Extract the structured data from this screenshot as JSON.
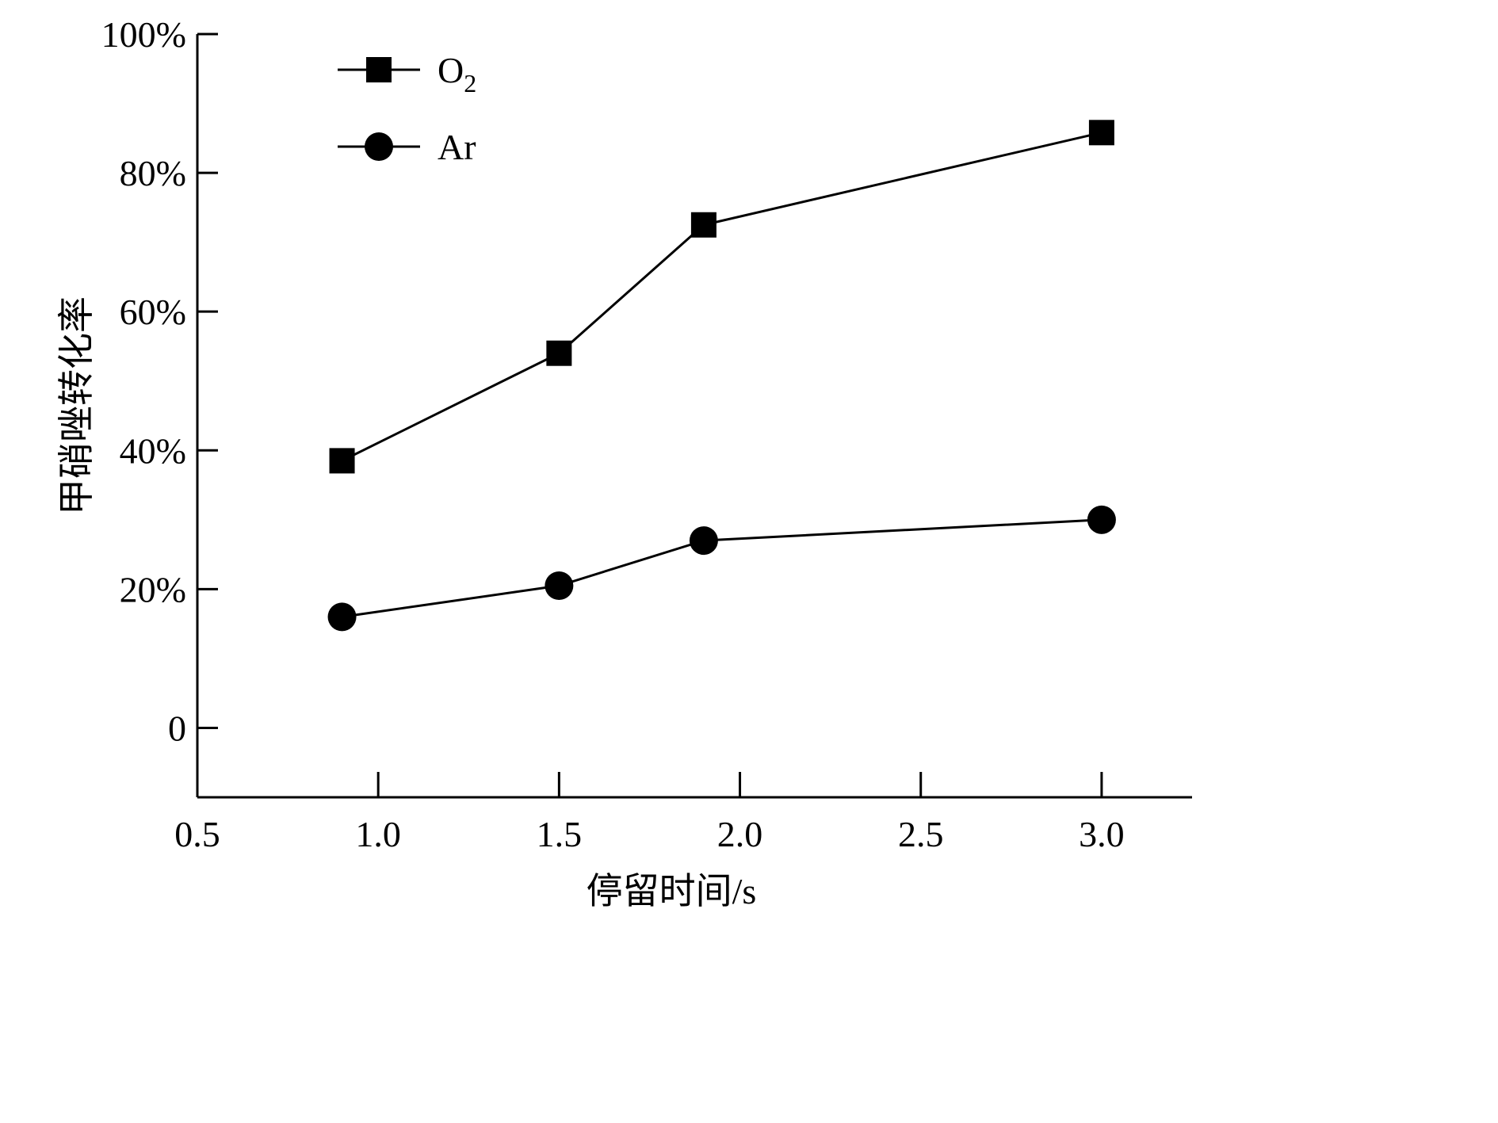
{
  "chart_data": {
    "type": "line",
    "xlabel": "停留时间/s",
    "ylabel": "甲硝唑转化率",
    "x_ticks": [
      "0.5",
      "1.0",
      "1.5",
      "2.0",
      "2.5",
      "3.0"
    ],
    "y_ticks": [
      "0",
      "20%",
      "40%",
      "60%",
      "80%",
      "100%"
    ],
    "xlim": [
      0.5,
      3.25
    ],
    "ylim": [
      -0.1,
      1.0
    ],
    "grid": false,
    "legend_position": "top-left",
    "series": [
      {
        "name": "O2",
        "legend_main": "O",
        "legend_sub": "2",
        "marker": "square",
        "x": [
          0.9,
          1.5,
          1.9,
          3.0
        ],
        "y": [
          0.385,
          0.54,
          0.725,
          0.858
        ]
      },
      {
        "name": "Ar",
        "legend_main": "Ar",
        "legend_sub": "",
        "marker": "circle",
        "x": [
          0.9,
          1.5,
          1.9,
          3.0
        ],
        "y": [
          0.16,
          0.205,
          0.27,
          0.3
        ]
      }
    ]
  }
}
